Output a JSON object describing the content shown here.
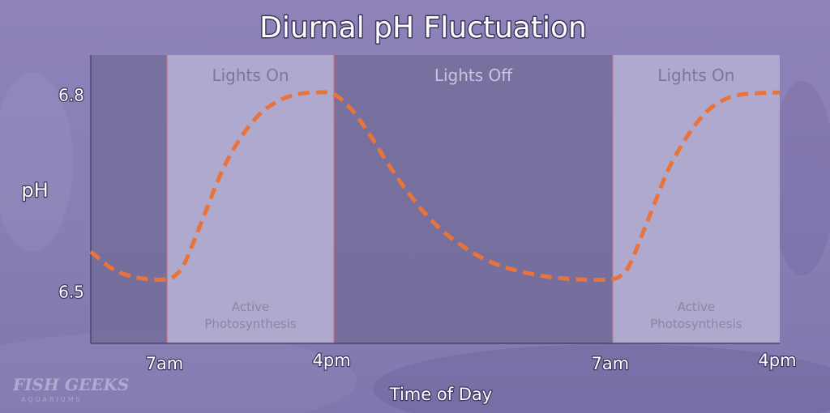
{
  "chart_data": {
    "type": "line",
    "title": "Diurnal pH Fluctuation",
    "xlabel": "Time of Day",
    "ylabel": "pH",
    "y_ticks": [
      {
        "value": 6.8,
        "label": "6.8"
      },
      {
        "value": 6.5,
        "label": "6.5"
      }
    ],
    "x_ticks": [
      {
        "hour": 7,
        "label": "7am"
      },
      {
        "hour": 16,
        "label": "4pm"
      },
      {
        "hour": 31,
        "label": "7am"
      },
      {
        "hour": 40,
        "label": "4pm"
      }
    ],
    "xlim": [
      2.9,
      40
    ],
    "ylim": [
      6.42,
      6.86
    ],
    "bands": [
      {
        "start": 2.9,
        "end": 7,
        "state": "off",
        "label": "",
        "note": ""
      },
      {
        "start": 7,
        "end": 16,
        "state": "on",
        "label": "Lights On",
        "note": "Active Photosynthesis"
      },
      {
        "start": 16,
        "end": 31,
        "state": "off",
        "label": "Lights Off",
        "note": ""
      },
      {
        "start": 31,
        "end": 40,
        "state": "on",
        "label": "Lights On",
        "note": "Active Photosynthesis"
      }
    ],
    "series": [
      {
        "x": [
          2.9,
          4,
          5,
          6,
          7,
          7.5,
          8,
          9,
          10,
          11,
          12,
          13,
          14,
          15,
          16,
          17,
          18,
          19,
          20,
          21,
          22,
          23,
          24,
          25,
          26,
          27,
          28,
          29,
          30,
          31,
          31.5,
          32,
          33,
          34,
          35,
          36,
          37,
          38,
          39,
          40
        ],
        "y": [
          6.56,
          6.535,
          6.523,
          6.518,
          6.518,
          6.525,
          6.545,
          6.615,
          6.685,
          6.735,
          6.77,
          6.79,
          6.8,
          6.803,
          6.8,
          6.775,
          6.735,
          6.69,
          6.65,
          6.615,
          6.588,
          6.567,
          6.55,
          6.538,
          6.53,
          6.524,
          6.52,
          6.518,
          6.517,
          6.518,
          6.525,
          6.545,
          6.615,
          6.685,
          6.735,
          6.772,
          6.792,
          6.8,
          6.802,
          6.803
        ],
        "color": "#e8743b"
      }
    ],
    "colors": {
      "lights_on_band": "#b3acd0",
      "lights_off_band": "#726b99",
      "band_edge": "#c76a72",
      "curve": "#e8743b"
    },
    "legend": "none",
    "grid": false
  },
  "logo": {
    "name": "FISH GEEKS",
    "sub": "AQUARIUMS"
  }
}
